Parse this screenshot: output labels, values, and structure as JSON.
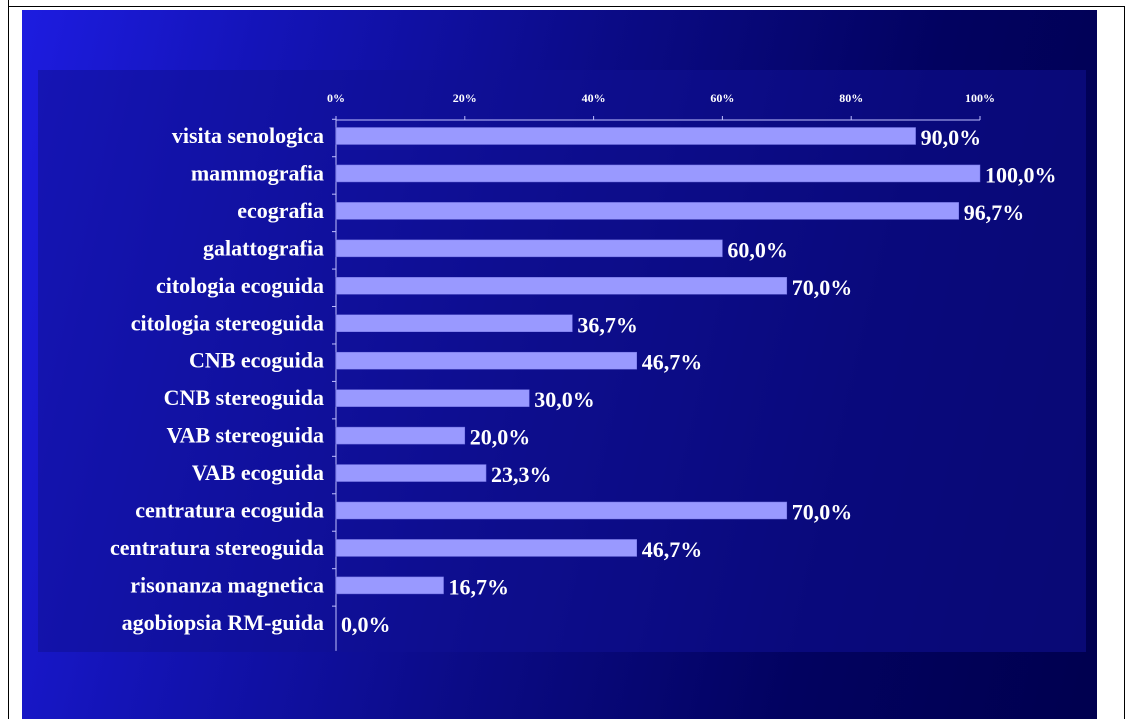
{
  "chart_data": {
    "type": "bar",
    "orientation": "horizontal",
    "categories": [
      "visita senologica",
      "mammografia",
      "ecografia",
      "galattografia",
      "citologia ecoguida",
      "citologia stereoguida",
      "CNB ecoguida",
      "CNB stereoguida",
      "VAB stereoguida",
      "VAB ecoguida",
      "centratura ecoguida",
      "centratura stereoguida",
      "risonanza magnetica",
      "agobiopsia RM-guida"
    ],
    "values": [
      90.0,
      100.0,
      96.7,
      60.0,
      70.0,
      36.7,
      46.7,
      30.0,
      20.0,
      23.3,
      70.0,
      46.7,
      16.7,
      0.0
    ],
    "value_labels": [
      "90,0%",
      "100,0%",
      "96,7%",
      "60,0%",
      "70,0%",
      "36,7%",
      "46,7%",
      "30,0%",
      "20,0%",
      "23,3%",
      "70,0%",
      "46,7%",
      "16,7%",
      "0,0%"
    ],
    "xticks": [
      "0%",
      "20%",
      "40%",
      "60%",
      "80%",
      "100%"
    ],
    "xlim": [
      0,
      100
    ],
    "axis_position": "top",
    "grid": false,
    "title": "",
    "xlabel": "",
    "ylabel": "",
    "colors": {
      "bar": "#9999ff",
      "text": "#ffffff",
      "axis": "#c0c0ff",
      "plot_bg": "#101094"
    }
  }
}
